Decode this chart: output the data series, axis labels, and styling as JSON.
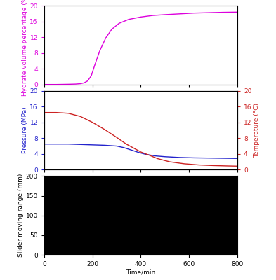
{
  "subplot1": {
    "ylabel": "Hydrate volume percentage (%)",
    "ylabel_color": "#dd00dd",
    "ylim": [
      0,
      20
    ],
    "yticks": [
      0,
      4,
      8,
      12,
      16,
      20
    ],
    "hydrate_x": [
      0,
      50,
      100,
      130,
      150,
      165,
      180,
      195,
      210,
      230,
      255,
      280,
      310,
      350,
      400,
      450,
      500,
      560,
      620,
      680,
      740,
      800
    ],
    "hydrate_y": [
      0,
      0,
      0.05,
      0.1,
      0.2,
      0.4,
      0.9,
      2.2,
      5.0,
      8.5,
      11.8,
      14.0,
      15.5,
      16.5,
      17.1,
      17.5,
      17.7,
      17.9,
      18.1,
      18.2,
      18.3,
      18.35
    ],
    "line_color": "#dd00dd"
  },
  "subplot2": {
    "ylabel": "Pressure (MPa)",
    "ylabel_color": "#2222cc",
    "ylabel2": "Temperature (°C)",
    "ylabel2_color": "#cc2222",
    "ylim": [
      0,
      20
    ],
    "yticks": [
      0,
      4,
      8,
      12,
      16,
      20
    ],
    "ylim2": [
      0,
      20
    ],
    "yticks2": [
      0,
      4,
      8,
      12,
      16,
      20
    ],
    "pressure_x": [
      0,
      50,
      100,
      150,
      200,
      250,
      300,
      330,
      360,
      390,
      420,
      460,
      500,
      560,
      620,
      680,
      740,
      800
    ],
    "pressure_y": [
      6.5,
      6.5,
      6.5,
      6.4,
      6.3,
      6.2,
      6.0,
      5.6,
      5.0,
      4.4,
      3.9,
      3.5,
      3.3,
      3.1,
      3.0,
      2.95,
      2.9,
      2.85
    ],
    "temperature_x": [
      0,
      50,
      100,
      150,
      200,
      250,
      300,
      340,
      370,
      400,
      430,
      470,
      520,
      580,
      640,
      700,
      760,
      800
    ],
    "temperature_y": [
      14.5,
      14.5,
      14.3,
      13.5,
      12.0,
      10.2,
      8.2,
      6.5,
      5.5,
      4.5,
      3.8,
      2.8,
      2.0,
      1.5,
      1.2,
      1.05,
      0.95,
      0.9
    ],
    "pressure_color": "#2222cc",
    "temperature_color": "#cc2222"
  },
  "subplot3": {
    "ylabel": "Slider moving range (mm)",
    "ylim": [
      0,
      200
    ],
    "yticks": [
      0,
      50,
      100,
      150,
      200
    ],
    "bg_color": "#000000"
  },
  "xlim": [
    0,
    800
  ],
  "xticks": [
    0,
    200,
    400,
    600,
    800
  ],
  "xlabel": "Time/min",
  "tick_fontsize": 6.5,
  "label_fontsize": 6.5
}
